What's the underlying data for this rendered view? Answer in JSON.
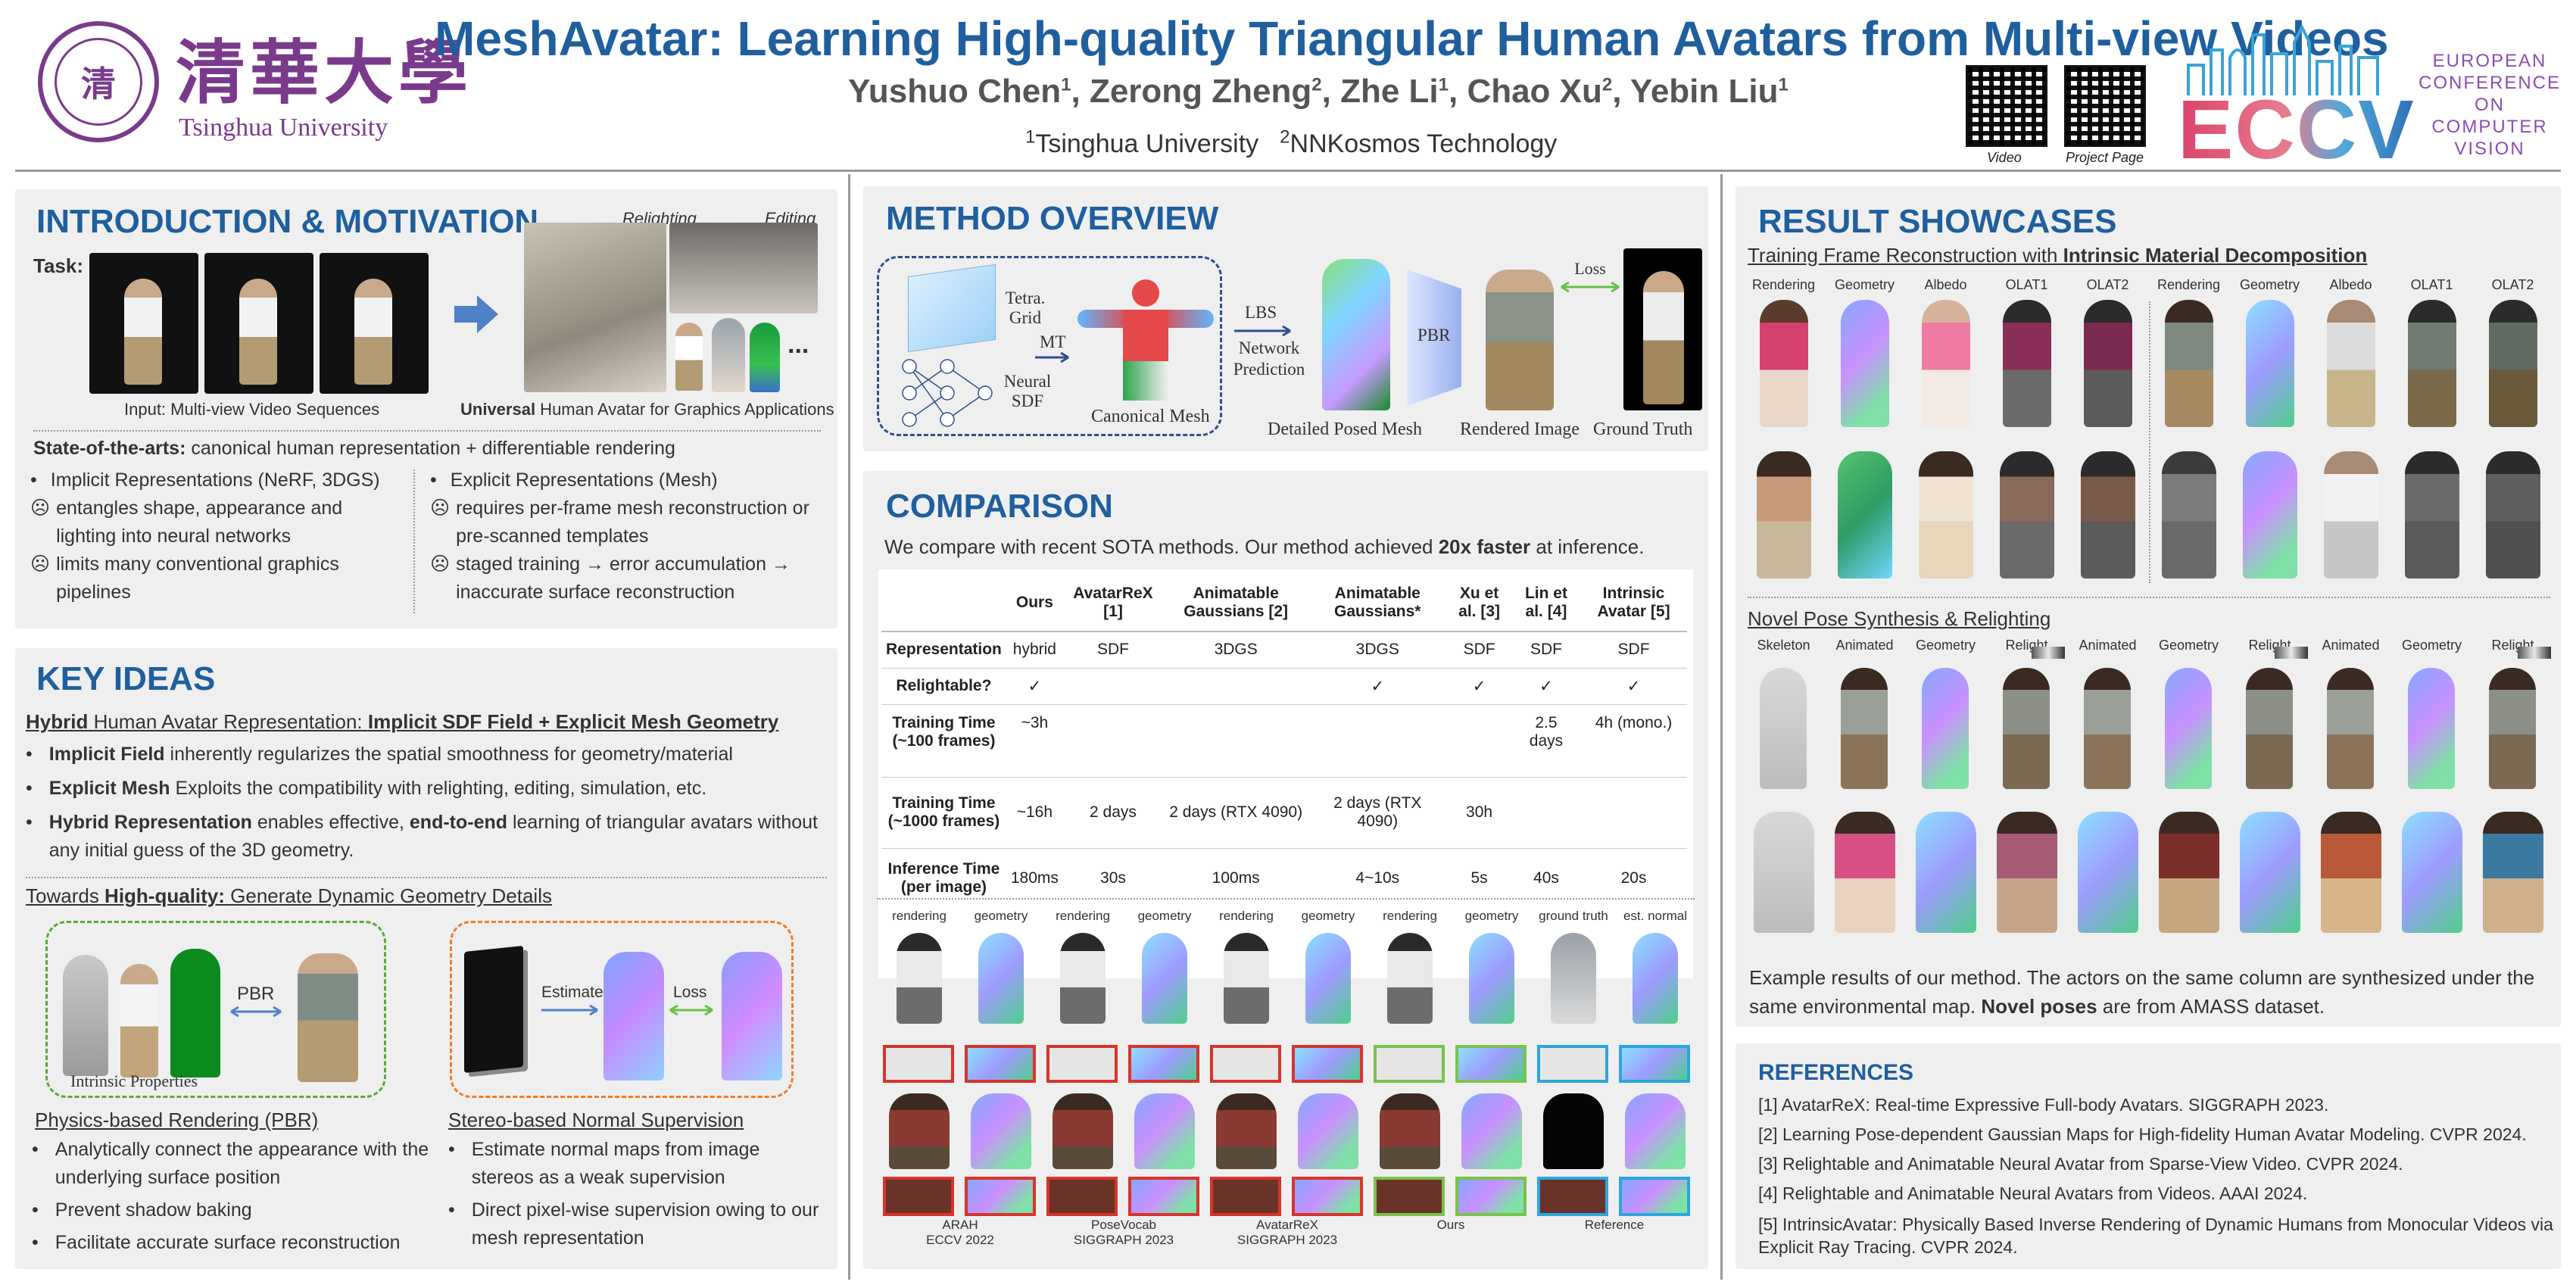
{
  "header": {
    "logo_seal_text": "清",
    "university_cn": "清華大學",
    "university_en": "Tsinghua University",
    "title": "MeshAvatar: Learning High-quality Triangular Human Avatars from Multi-view Videos",
    "authors": [
      {
        "name": "Yushuo Chen",
        "aff": "1"
      },
      {
        "name": "Zerong Zheng",
        "aff": "2"
      },
      {
        "name": "Zhe Li",
        "aff": "1"
      },
      {
        "name": "Chao Xu",
        "aff": "2"
      },
      {
        "name": "Yebin Liu",
        "aff": "1"
      }
    ],
    "affiliations": [
      {
        "num": "1",
        "name": "Tsinghua University"
      },
      {
        "num": "2",
        "name": "NNKosmos Technology"
      }
    ],
    "qr_video_label": "Video",
    "qr_project_label": "Project Page",
    "conference_logo": "ECCV",
    "conference_lines": [
      "EUROPEAN",
      "CONFERENCE",
      "ON COMPUTER",
      "VISION"
    ]
  },
  "intro": {
    "title": "INTRODUCTION & MOTIVATION",
    "task_label": "Task:",
    "relighting_label": "Relighting",
    "editing_label": "Editing",
    "ellipsis": "...",
    "input_caption": "Input: Multi-view Video Sequences",
    "output_caption_bold": "Universal",
    "output_caption_rest": " Human Avatar for Graphics Applications",
    "sota_bold": "State-of-the-arts:",
    "sota_rest": " canonical human representation + differentiable rendering",
    "left_items": [
      {
        "mark": "•",
        "text": "Implicit Representations (NeRF, 3DGS)"
      },
      {
        "mark": "☹",
        "text": "entangles shape, appearance and lighting into neural networks"
      },
      {
        "mark": "☹",
        "text": "limits many conventional graphics pipelines"
      }
    ],
    "right_items": [
      {
        "mark": "•",
        "text": "Explicit Representations (Mesh)"
      },
      {
        "mark": "☹",
        "text": "requires per-frame mesh reconstruction or pre-scanned templates"
      },
      {
        "mark": "☹",
        "text": "staged training → error accumulation → inaccurate surface reconstruction"
      }
    ]
  },
  "key_ideas": {
    "title": "KEY IDEAS",
    "hybrid_head_bold": "Hybrid",
    "hybrid_head_rest": " Human Avatar Representation: ",
    "hybrid_head_bold2": "Implicit SDF Field + Explicit Mesh Geometry",
    "bullets": [
      {
        "bold": "Implicit Field",
        "rest": " inherently regularizes the spatial smoothness for geometry/material"
      },
      {
        "bold": "Explicit Mesh",
        "rest": " Exploits the compatibility with relighting, editing, simulation, etc."
      },
      {
        "bold": "Hybrid Representation",
        "rest": " enables effective, ",
        "bold2": "end-to-end",
        "rest2": " learning of triangular avatars without any initial guess of the 3D geometry."
      }
    ],
    "towards_pre": "Towards ",
    "towards_bold": "High-quality:",
    "towards_rest": " Generate Dynamic Geometry Details",
    "pbr_arrow_label": "PBR",
    "intrinsic_label": "Intrinsic Properties",
    "estimate_label": "Estimate",
    "loss_label": "Loss",
    "pbr_head": "Physics-based Rendering (PBR)",
    "pbr_items": [
      "Analytically connect the appearance with the underlying surface position",
      "Prevent shadow baking",
      "Facilitate accurate surface reconstruction"
    ],
    "stereo_head": "Stereo-based Normal Supervision",
    "stereo_items": [
      "Estimate normal maps from image stereos as a weak supervision",
      "Direct pixel-wise supervision owing to our mesh representation"
    ]
  },
  "method": {
    "title": "METHOD OVERVIEW",
    "tetra_label": "Tetra. Grid",
    "sdf_label": "Neural SDF",
    "mt_label": "MT",
    "canonical_label": "Canonical Mesh",
    "lbs_label": "LBS",
    "netpred_label": "Network Prediction",
    "pbr_label": "PBR",
    "loss_label": "Loss",
    "posed_label": "Detailed Posed Mesh",
    "rendered_label": "Rendered Image",
    "gt_label": "Ground Truth"
  },
  "comparison": {
    "title": "COMPARISON",
    "intro_rest": "We compare with recent SOTA methods. Our method achieved ",
    "intro_bold": "20x faster",
    "intro_end": " at inference.",
    "columns": [
      "",
      "Ours",
      "AvatarReX [1]",
      "Animatable Gaussians [2]",
      "Animatable Gaussians*",
      "Xu et al. [3]",
      "Lin et al. [4]",
      "Intrinsic Avatar [5]"
    ],
    "rows": [
      [
        "Representation",
        "hybrid",
        "SDF",
        "3DGS",
        "3DGS",
        "SDF",
        "SDF",
        "SDF"
      ],
      [
        "Relightable?",
        "✓",
        "",
        "",
        "✓",
        "✓",
        "✓",
        "✓"
      ],
      [
        "Training Time (~100 frames)",
        "~3h",
        "",
        "",
        "",
        "",
        "2.5 days",
        "4h (mono.)"
      ],
      [
        "Training Time (~1000 frames)",
        "~16h",
        "2 days",
        "2 days (RTX 4090)",
        "2 days (RTX 4090)",
        "30h",
        "",
        ""
      ],
      [
        "Inference Time (per image)",
        "180ms",
        "30s",
        "100ms",
        "4~10s",
        "5s",
        "40s",
        "20s"
      ]
    ],
    "grid_headers": [
      "rendering",
      "geometry",
      "rendering",
      "geometry",
      "rendering",
      "geometry",
      "rendering",
      "geometry",
      "ground truth",
      "est. normal"
    ],
    "grid_captions": [
      {
        "line1": "ARAH",
        "line2": "ECCV 2022"
      },
      {
        "line1": "PoseVocab",
        "line2": "SIGGRAPH 2023"
      },
      {
        "line1": "AvatarReX",
        "line2": "SIGGRAPH 2023"
      },
      {
        "line1": "Ours",
        "line2": ""
      },
      {
        "line1": "Reference",
        "line2": ""
      }
    ]
  },
  "results": {
    "title": "RESULT SHOWCASES",
    "sub1_rest": "Training Frame Reconstruction with ",
    "sub1_bold": "Intrinsic Material Decomposition",
    "row1_headers": [
      "Rendering",
      "Geometry",
      "Albedo",
      "OLAT1",
      "OLAT2",
      "Rendering",
      "Geometry",
      "Albedo",
      "OLAT1",
      "OLAT2"
    ],
    "sub2": "Novel Pose Synthesis & Relighting",
    "row2_headers": [
      "Skeleton",
      "Animated",
      "Geometry",
      "Relight",
      "Animated",
      "Geometry",
      "Relight",
      "Animated",
      "Geometry",
      "Relight"
    ],
    "caption_rest": "Example results of our method. The actors on the same column are synthesized under the same environmental map. ",
    "caption_bold": "Novel poses",
    "caption_end": " are from AMASS dataset."
  },
  "references": {
    "title": "REFERENCES",
    "items": [
      "[1] AvatarReX: Real-time Expressive Full-body Avatars. SIGGRAPH 2023.",
      "[2] Learning Pose-dependent Gaussian Maps for High-fidelity Human Avatar Modeling. CVPR 2024.",
      "[3] Relightable and Animatable Neural Avatar from Sparse-View Video. CVPR 2024.",
      "[4] Relightable and Animatable Neural Avatars from Videos. AAAI 2024.",
      "[5] IntrinsicAvatar: Physically Based Inverse Rendering of Dynamic Humans from Monocular Videos via Explicit Ray Tracing. CVPR 2024."
    ]
  },
  "colors": {
    "title_blue": "#1f5f9e",
    "tsinghua_purple": "#7a3a8c",
    "eccv_pink": "#d9446d",
    "eccv_blue": "#2e6fb8"
  }
}
